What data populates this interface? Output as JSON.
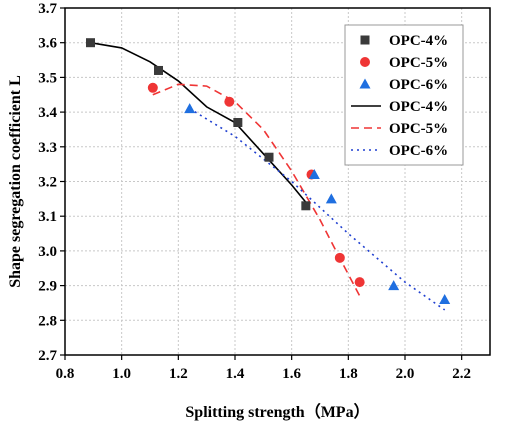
{
  "chart_data": {
    "type": "scatter",
    "xlabel": "Splitting strength（MPa）",
    "ylabel": "Shape segregation coefficient L",
    "xlim": [
      0.8,
      2.3
    ],
    "ylim": [
      2.7,
      3.7
    ],
    "x_ticks": [
      "0.8",
      "1.0",
      "1.2",
      "1.4",
      "1.6",
      "1.8",
      "2.0",
      "2.2"
    ],
    "y_ticks": [
      "2.7",
      "2.8",
      "2.9",
      "3.0",
      "3.1",
      "3.2",
      "3.3",
      "3.4",
      "3.5",
      "3.6",
      "3.7"
    ],
    "grid": true,
    "legend_position": "top-right",
    "series": [
      {
        "name": "OPC-4%",
        "marker": "square",
        "color": "#3a3a3a",
        "points": [
          [
            0.89,
            3.6
          ],
          [
            1.13,
            3.52
          ],
          [
            1.41,
            3.37
          ],
          [
            1.52,
            3.27
          ],
          [
            1.65,
            3.13
          ]
        ]
      },
      {
        "name": "OPC-5%",
        "marker": "circle",
        "color": "#ef3535",
        "points": [
          [
            1.11,
            3.47
          ],
          [
            1.38,
            3.43
          ],
          [
            1.67,
            3.22
          ],
          [
            1.77,
            2.98
          ],
          [
            1.84,
            2.91
          ]
        ]
      },
      {
        "name": "OPC-6%",
        "marker": "triangle",
        "color": "#1f6fe0",
        "points": [
          [
            1.24,
            3.41
          ],
          [
            1.68,
            3.22
          ],
          [
            1.74,
            3.15
          ],
          [
            1.96,
            2.9
          ],
          [
            2.14,
            2.86
          ]
        ]
      }
    ],
    "fits": [
      {
        "name": "OPC-4%",
        "style": "solid",
        "color": "#000000",
        "points": [
          [
            0.89,
            3.6
          ],
          [
            1.0,
            3.585
          ],
          [
            1.1,
            3.545
          ],
          [
            1.2,
            3.49
          ],
          [
            1.3,
            3.415
          ],
          [
            1.4,
            3.37
          ],
          [
            1.5,
            3.28
          ],
          [
            1.6,
            3.19
          ],
          [
            1.65,
            3.14
          ]
        ]
      },
      {
        "name": "OPC-5%",
        "style": "dashed",
        "color": "#ef3535",
        "points": [
          [
            1.11,
            3.45
          ],
          [
            1.2,
            3.48
          ],
          [
            1.3,
            3.475
          ],
          [
            1.4,
            3.43
          ],
          [
            1.5,
            3.35
          ],
          [
            1.6,
            3.23
          ],
          [
            1.7,
            3.09
          ],
          [
            1.75,
            3.01
          ],
          [
            1.84,
            2.87
          ]
        ]
      },
      {
        "name": "OPC-6%",
        "style": "dotted",
        "color": "#1f3fd0",
        "points": [
          [
            1.24,
            3.41
          ],
          [
            1.4,
            3.33
          ],
          [
            1.6,
            3.2
          ],
          [
            1.8,
            3.05
          ],
          [
            2.0,
            2.91
          ],
          [
            2.14,
            2.83
          ]
        ]
      }
    ]
  }
}
